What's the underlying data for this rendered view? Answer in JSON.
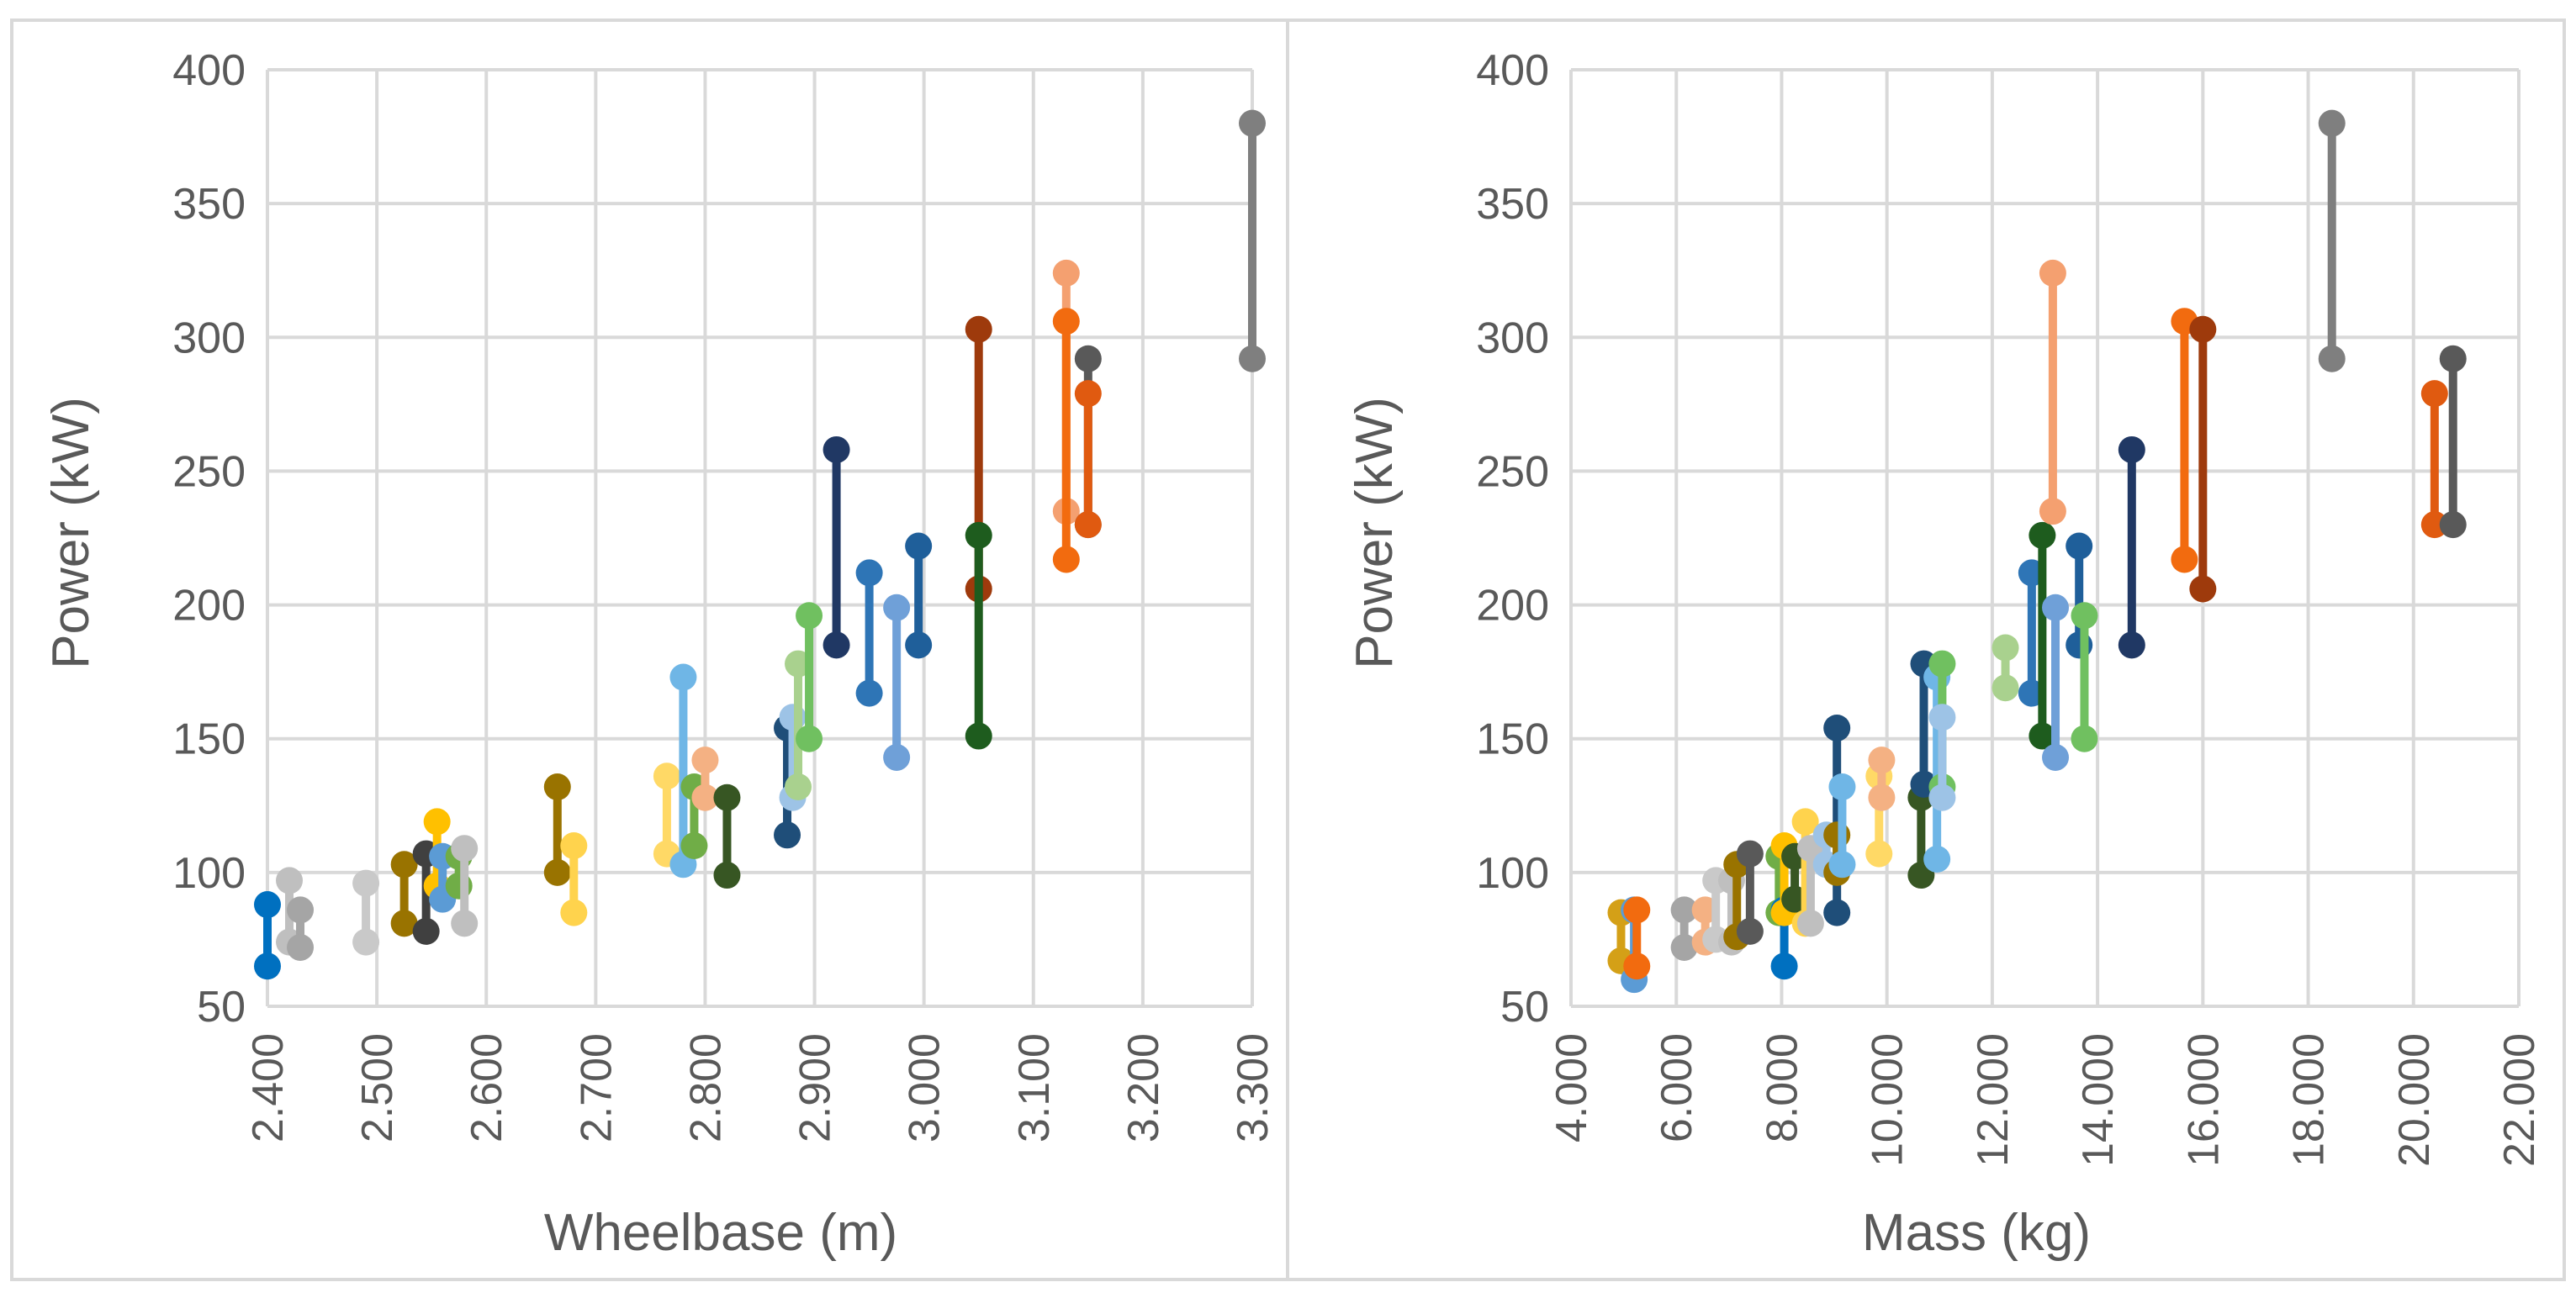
{
  "colors": {
    "grid": "#d9d9d9",
    "border": "#d9d9d9",
    "divider": "#d9d9d9",
    "text": "#595959"
  },
  "chart_data": [
    {
      "type": "scatter",
      "subtype": "min-max range (dumbbell)",
      "title": "",
      "xlabel": "Wheelbase (m)",
      "ylabel": "Power (kW)",
      "xlim": [
        2.4,
        3.3
      ],
      "ylim": [
        50,
        400
      ],
      "x_ticks": [
        "2.400",
        "2.500",
        "2.600",
        "2.700",
        "2.800",
        "2.900",
        "3.000",
        "3.100",
        "3.200",
        "3.300"
      ],
      "y_ticks": [
        "50",
        "100",
        "150",
        "200",
        "250",
        "300",
        "350",
        "400"
      ],
      "grid": true,
      "legend": "none",
      "ranges": [
        {
          "x": 2.4,
          "min": 65,
          "max": 88,
          "color": "#0070c0"
        },
        {
          "x": 2.42,
          "min": 74,
          "max": 97,
          "color": "#bfbfbf"
        },
        {
          "x": 2.43,
          "min": 72,
          "max": 86,
          "color": "#a5a5a5"
        },
        {
          "x": 2.49,
          "min": 74,
          "max": 96,
          "color": "#c9c9c9"
        },
        {
          "x": 2.525,
          "min": 81,
          "max": 103,
          "color": "#997300"
        },
        {
          "x": 2.545,
          "min": 78,
          "max": 107,
          "color": "#404040"
        },
        {
          "x": 2.555,
          "min": 95,
          "max": 119,
          "color": "#ffc000"
        },
        {
          "x": 2.56,
          "min": 90,
          "max": 106,
          "color": "#5b9bd5"
        },
        {
          "x": 2.575,
          "min": 95,
          "max": 106,
          "color": "#70ad47"
        },
        {
          "x": 2.58,
          "min": 81,
          "max": 109,
          "color": "#bfbfbf"
        },
        {
          "x": 2.665,
          "min": 100,
          "max": 132,
          "color": "#997300"
        },
        {
          "x": 2.68,
          "min": 85,
          "max": 110,
          "color": "#ffd34d"
        },
        {
          "x": 2.765,
          "min": 107,
          "max": 136,
          "color": "#ffd966"
        },
        {
          "x": 2.78,
          "min": 103,
          "max": 173,
          "color": "#6fb6e6"
        },
        {
          "x": 2.79,
          "min": 110,
          "max": 132,
          "color": "#70ad47"
        },
        {
          "x": 2.8,
          "min": 128,
          "max": 142,
          "color": "#f4b183"
        },
        {
          "x": 2.82,
          "min": 99,
          "max": 128,
          "color": "#375623"
        },
        {
          "x": 2.875,
          "min": 114,
          "max": 154,
          "color": "#1f4e79"
        },
        {
          "x": 2.88,
          "min": 128,
          "max": 158,
          "color": "#9dc3e6"
        },
        {
          "x": 2.885,
          "min": 132,
          "max": 178,
          "color": "#a9d18e"
        },
        {
          "x": 2.895,
          "min": 150,
          "max": 196,
          "color": "#70c060"
        },
        {
          "x": 2.92,
          "min": 185,
          "max": 258,
          "color": "#203864"
        },
        {
          "x": 2.95,
          "min": 167,
          "max": 212,
          "color": "#2e75b6"
        },
        {
          "x": 2.975,
          "min": 143,
          "max": 199,
          "color": "#6fa0d8"
        },
        {
          "x": 2.995,
          "min": 185,
          "max": 222,
          "color": "#1f5f9a"
        },
        {
          "x": 3.05,
          "min": 206,
          "max": 303,
          "color": "#9e3a0c"
        },
        {
          "x": 3.05,
          "min": 151,
          "max": 226,
          "color": "#1e5c1e"
        },
        {
          "x": 3.13,
          "min": 235,
          "max": 324,
          "color": "#f4a070"
        },
        {
          "x": 3.13,
          "min": 217,
          "max": 306,
          "color": "#f26b0f"
        },
        {
          "x": 3.15,
          "min": 230,
          "max": 292,
          "color": "#595959"
        },
        {
          "x": 3.15,
          "min": 230,
          "max": 279,
          "color": "#e05a10"
        },
        {
          "x": 3.3,
          "min": 292,
          "max": 380,
          "color": "#7f7f7f"
        }
      ]
    },
    {
      "type": "scatter",
      "subtype": "min-max range (dumbbell)",
      "title": "",
      "xlabel": "Mass (kg)",
      "ylabel": "Power (kW)",
      "xlim": [
        4000,
        22000
      ],
      "ylim": [
        50,
        400
      ],
      "x_ticks": [
        "4.000",
        "6.000",
        "8.000",
        "10.000",
        "12.000",
        "14.000",
        "16.000",
        "18.000",
        "20.000",
        "22.000"
      ],
      "y_ticks": [
        "50",
        "100",
        "150",
        "200",
        "250",
        "300",
        "350",
        "400"
      ],
      "grid": true,
      "legend": "none",
      "ranges": [
        {
          "x": 4950,
          "min": 67,
          "max": 85,
          "color": "#d4a017"
        },
        {
          "x": 5200,
          "min": 60,
          "max": 86,
          "color": "#5b9bd5"
        },
        {
          "x": 5250,
          "min": 65,
          "max": 86,
          "color": "#f26b0f"
        },
        {
          "x": 6150,
          "min": 72,
          "max": 86,
          "color": "#a5a5a5"
        },
        {
          "x": 6550,
          "min": 74,
          "max": 86,
          "color": "#f4b183"
        },
        {
          "x": 6750,
          "min": 75,
          "max": 97,
          "color": "#c9c9c9"
        },
        {
          "x": 7050,
          "min": 74,
          "max": 97,
          "color": "#bfbfbf"
        },
        {
          "x": 7150,
          "min": 76,
          "max": 103,
          "color": "#997300"
        },
        {
          "x": 7400,
          "min": 78,
          "max": 107,
          "color": "#595959"
        },
        {
          "x": 7950,
          "min": 85,
          "max": 106,
          "color": "#70ad47"
        },
        {
          "x": 8050,
          "min": 65,
          "max": 86,
          "color": "#0070c0"
        },
        {
          "x": 8050,
          "min": 85,
          "max": 110,
          "color": "#ffc000"
        },
        {
          "x": 8250,
          "min": 90,
          "max": 106,
          "color": "#375623"
        },
        {
          "x": 8450,
          "min": 81,
          "max": 119,
          "color": "#ffd34d"
        },
        {
          "x": 8550,
          "min": 81,
          "max": 109,
          "color": "#bfbfbf"
        },
        {
          "x": 8850,
          "min": 103,
          "max": 114,
          "color": "#9dc3e6"
        },
        {
          "x": 9050,
          "min": 85,
          "max": 154,
          "color": "#1f4e79"
        },
        {
          "x": 9050,
          "min": 100,
          "max": 114,
          "color": "#997300"
        },
        {
          "x": 9150,
          "min": 103,
          "max": 132,
          "color": "#6fb6e6"
        },
        {
          "x": 9850,
          "min": 107,
          "max": 136,
          "color": "#ffd966"
        },
        {
          "x": 9900,
          "min": 128,
          "max": 142,
          "color": "#f4b183"
        },
        {
          "x": 10650,
          "min": 99,
          "max": 128,
          "color": "#375623"
        },
        {
          "x": 10700,
          "min": 133,
          "max": 178,
          "color": "#1f4e79"
        },
        {
          "x": 10950,
          "min": 105,
          "max": 173,
          "color": "#6fb6e6"
        },
        {
          "x": 11050,
          "min": 132,
          "max": 178,
          "color": "#70c060"
        },
        {
          "x": 11050,
          "min": 128,
          "max": 158,
          "color": "#9dc3e6"
        },
        {
          "x": 12250,
          "min": 169,
          "max": 184,
          "color": "#a9d18e"
        },
        {
          "x": 12750,
          "min": 167,
          "max": 212,
          "color": "#2e75b6"
        },
        {
          "x": 12950,
          "min": 151,
          "max": 226,
          "color": "#1e5c1e"
        },
        {
          "x": 13150,
          "min": 235,
          "max": 324,
          "color": "#f4a070"
        },
        {
          "x": 13200,
          "min": 143,
          "max": 199,
          "color": "#6fa0d8"
        },
        {
          "x": 13650,
          "min": 185,
          "max": 222,
          "color": "#1f5f9a"
        },
        {
          "x": 13750,
          "min": 150,
          "max": 196,
          "color": "#70c060"
        },
        {
          "x": 14650,
          "min": 185,
          "max": 258,
          "color": "#203864"
        },
        {
          "x": 15650,
          "min": 217,
          "max": 306,
          "color": "#f26b0f"
        },
        {
          "x": 16000,
          "min": 206,
          "max": 303,
          "color": "#9e3a0c"
        },
        {
          "x": 18450,
          "min": 292,
          "max": 380,
          "color": "#7f7f7f"
        },
        {
          "x": 20400,
          "min": 230,
          "max": 279,
          "color": "#e05a10"
        },
        {
          "x": 20750,
          "min": 230,
          "max": 292,
          "color": "#595959"
        }
      ]
    }
  ]
}
